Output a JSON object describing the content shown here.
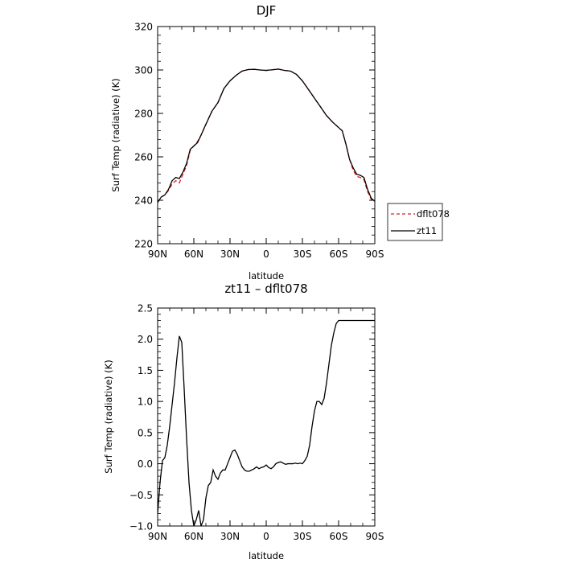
{
  "chart_data": [
    {
      "type": "line",
      "title": "DJF",
      "xlabel": "latitude",
      "ylabel": "Surf Temp (radiative) (K)",
      "xlim": [
        -90,
        90
      ],
      "ylim": [
        220,
        320
      ],
      "x_ticks": [
        {
          "value": -90,
          "label": "90N"
        },
        {
          "value": -60,
          "label": "60N"
        },
        {
          "value": -30,
          "label": "30N"
        },
        {
          "value": 0,
          "label": "0"
        },
        {
          "value": 30,
          "label": "30S"
        },
        {
          "value": 60,
          "label": "60S"
        },
        {
          "value": 90,
          "label": "90S"
        }
      ],
      "y_ticks": [
        {
          "value": 220,
          "label": "220"
        },
        {
          "value": 240,
          "label": "240"
        },
        {
          "value": 260,
          "label": "260"
        },
        {
          "value": 280,
          "label": "280"
        },
        {
          "value": 300,
          "label": "300"
        },
        {
          "value": 320,
          "label": "320"
        }
      ],
      "legend": "right",
      "series": [
        {
          "name": "dflt078",
          "color": "#d62020",
          "dash": "dashed",
          "x": [
            -90,
            -87,
            -84,
            -81,
            -78,
            -75,
            -72,
            -69,
            -66,
            -63,
            -60,
            -57,
            -54,
            -50,
            -45,
            -40,
            -35,
            -30,
            -25,
            -20,
            -15,
            -10,
            -5,
            0,
            5,
            10,
            15,
            20,
            25,
            30,
            35,
            40,
            45,
            50,
            55,
            60,
            63,
            66,
            69,
            72,
            75,
            78,
            81,
            84,
            87,
            90
          ],
          "y": [
            239,
            241.5,
            242.5,
            244.5,
            247.5,
            249,
            248,
            252,
            256,
            263,
            265,
            267,
            270,
            275,
            281,
            285,
            291.5,
            295,
            297.5,
            299.5,
            300.2,
            300.3,
            300,
            299.8,
            300.1,
            300.4,
            299.8,
            299.5,
            298,
            295,
            291,
            287,
            283,
            279,
            276,
            273.5,
            272,
            266,
            259,
            254,
            251,
            250.5,
            249.5,
            244,
            240.5,
            239.5
          ]
        },
        {
          "name": "zt11",
          "color": "#000000",
          "dash": "solid",
          "x": [
            -90,
            -87,
            -84,
            -81,
            -78,
            -75,
            -72,
            -69,
            -66,
            -63,
            -60,
            -57,
            -54,
            -50,
            -45,
            -40,
            -35,
            -30,
            -25,
            -20,
            -15,
            -10,
            -5,
            0,
            5,
            10,
            15,
            20,
            25,
            30,
            35,
            40,
            45,
            50,
            55,
            60,
            63,
            66,
            69,
            72,
            75,
            78,
            81,
            84,
            87,
            90
          ],
          "y": [
            239,
            241.5,
            242.5,
            245,
            249,
            250.5,
            250,
            253,
            257,
            263.5,
            265,
            266.5,
            270,
            275,
            281,
            285,
            291.5,
            295,
            297.5,
            299.5,
            300.2,
            300.3,
            300,
            299.8,
            300.1,
            300.4,
            299.8,
            299.5,
            298,
            295,
            291,
            287,
            283,
            279,
            276,
            273.5,
            272,
            266,
            259,
            255,
            252,
            251.5,
            250.5,
            245,
            241,
            239.5
          ]
        }
      ]
    },
    {
      "type": "line",
      "title": "zt11 – dflt078",
      "xlabel": "latitude",
      "ylabel": "Surf Temp (radiative) (K)",
      "xlim": [
        -90,
        90
      ],
      "ylim": [
        -1.0,
        2.5
      ],
      "x_ticks": [
        {
          "value": -90,
          "label": "90N"
        },
        {
          "value": -60,
          "label": "60N"
        },
        {
          "value": -30,
          "label": "30N"
        },
        {
          "value": 0,
          "label": "0"
        },
        {
          "value": 30,
          "label": "30S"
        },
        {
          "value": 60,
          "label": "60S"
        },
        {
          "value": 90,
          "label": "90S"
        }
      ],
      "y_ticks": [
        {
          "value": -1.0,
          "label": "−1.0"
        },
        {
          "value": -0.5,
          "label": "−0.5"
        },
        {
          "value": 0.0,
          "label": "0.0"
        },
        {
          "value": 0.5,
          "label": "0.5"
        },
        {
          "value": 1.0,
          "label": "1.0"
        },
        {
          "value": 1.5,
          "label": "1.5"
        },
        {
          "value": 2.0,
          "label": "2.0"
        },
        {
          "value": 2.5,
          "label": "2.5"
        }
      ],
      "series": [
        {
          "color": "#000000",
          "dash": "solid",
          "x": [
            -90,
            -88,
            -86,
            -84,
            -82,
            -80,
            -78,
            -76,
            -74,
            -72,
            -70,
            -68,
            -66,
            -64,
            -62,
            -60,
            -58,
            -56,
            -54,
            -52,
            -50,
            -48,
            -46,
            -44,
            -42,
            -40,
            -38,
            -36,
            -34,
            -32,
            -30,
            -28,
            -26,
            -24,
            -22,
            -20,
            -18,
            -16,
            -14,
            -12,
            -10,
            -8,
            -6,
            -4,
            -2,
            0,
            2,
            4,
            6,
            8,
            10,
            12,
            14,
            16,
            18,
            20,
            22,
            24,
            26,
            28,
            30,
            32,
            34,
            36,
            38,
            40,
            42,
            44,
            46,
            48,
            50,
            52,
            54,
            56,
            58,
            60,
            62,
            64,
            66,
            68,
            70,
            72,
            74,
            76,
            78,
            80,
            82,
            84,
            86,
            88,
            90
          ],
          "y": [
            -0.8,
            -0.3,
            0.05,
            0.1,
            0.3,
            0.6,
            0.95,
            1.3,
            1.7,
            2.05,
            1.95,
            1.2,
            0.4,
            -0.3,
            -0.75,
            -1.0,
            -0.9,
            -0.75,
            -1.0,
            -0.9,
            -0.55,
            -0.35,
            -0.3,
            -0.1,
            -0.2,
            -0.25,
            -0.15,
            -0.1,
            -0.1,
            0.0,
            0.1,
            0.2,
            0.22,
            0.15,
            0.05,
            -0.05,
            -0.1,
            -0.12,
            -0.12,
            -0.1,
            -0.08,
            -0.05,
            -0.08,
            -0.06,
            -0.05,
            -0.02,
            -0.06,
            -0.08,
            -0.05,
            0.0,
            0.02,
            0.03,
            0.01,
            -0.01,
            0.0,
            0.0,
            0.0,
            0.01,
            0.0,
            0.01,
            0.0,
            0.05,
            0.12,
            0.3,
            0.6,
            0.85,
            1.0,
            1.0,
            0.95,
            1.05,
            1.3,
            1.6,
            1.9,
            2.1,
            2.25,
            2.3,
            2.3,
            2.3,
            2.3,
            2.3,
            2.3,
            2.3,
            2.3,
            2.3,
            2.3,
            2.3,
            2.3,
            2.3,
            2.3,
            2.3,
            2.3
          ]
        }
      ]
    }
  ]
}
